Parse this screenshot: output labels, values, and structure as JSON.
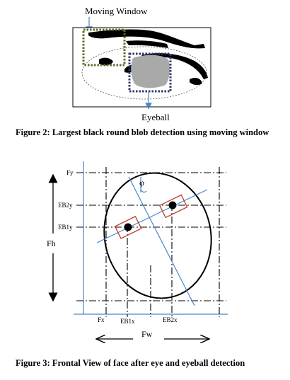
{
  "figure2": {
    "label_moving_window": "Moving Window",
    "label_eyeball": "Eyeball",
    "caption": "Figure 2: Largest black round blob detection using moving window"
  },
  "figure3": {
    "labels": {
      "fy": "Fy",
      "eb2y": "EB2y",
      "eb1y": "EB1y",
      "fh": "Fh",
      "phi": "φ",
      "fx": "Fx",
      "eb1x": "EB1x",
      "eb2x": "EB2x",
      "fw": "Fw"
    },
    "caption": "Figure 3: Frontal View of face after eye and eyeball detection"
  },
  "colors": {
    "blue_line": "#4a86c8",
    "red_box": "#c0392b",
    "olive_window": "#5a6b2a",
    "navy_window": "#2c3a66"
  }
}
